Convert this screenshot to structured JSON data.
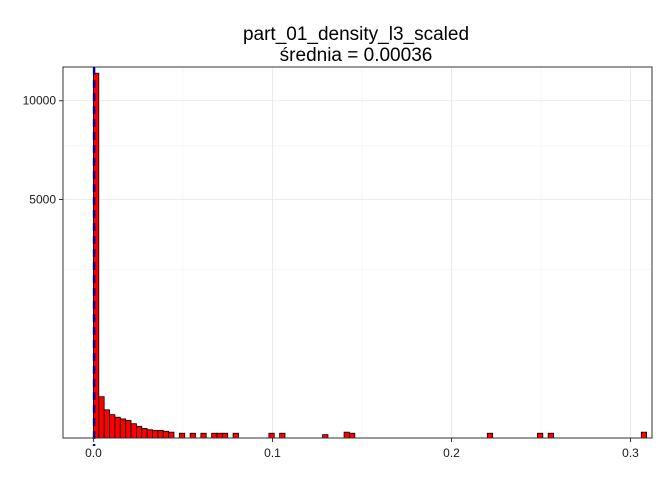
{
  "chart_data": {
    "type": "bar",
    "title": "part_01_density_l3_scaled",
    "subtitle": "średnia = 0.00036",
    "xlabel": "",
    "ylabel": "",
    "y_scale": "sqrt",
    "xlim": [
      -0.017,
      0.312
    ],
    "ylim": [
      0,
      12100
    ],
    "x_ticks": [
      0.0,
      0.1,
      0.2,
      0.3
    ],
    "x_tick_labels": [
      "0.0",
      "0.1",
      "0.2",
      "0.3"
    ],
    "y_ticks": [
      5000,
      10000
    ],
    "y_tick_labels": [
      "5000",
      "10000"
    ],
    "grid": true,
    "bin_width": 0.003,
    "bar_fill": "#ff0000",
    "bar_stroke": "#000000",
    "mean_line": {
      "value": 0.00036,
      "color": "#00008b",
      "style": "dashed"
    },
    "bins": [
      {
        "x": 0.0,
        "count": 11700
      },
      {
        "x": 0.003,
        "count": 150
      },
      {
        "x": 0.006,
        "count": 70
      },
      {
        "x": 0.009,
        "count": 48
      },
      {
        "x": 0.012,
        "count": 38
      },
      {
        "x": 0.015,
        "count": 32
      },
      {
        "x": 0.018,
        "count": 27
      },
      {
        "x": 0.021,
        "count": 18
      },
      {
        "x": 0.024,
        "count": 12
      },
      {
        "x": 0.027,
        "count": 8
      },
      {
        "x": 0.03,
        "count": 6
      },
      {
        "x": 0.033,
        "count": 5
      },
      {
        "x": 0.036,
        "count": 5
      },
      {
        "x": 0.039,
        "count": 4
      },
      {
        "x": 0.042,
        "count": 3
      },
      {
        "x": 0.048,
        "count": 2
      },
      {
        "x": 0.054,
        "count": 2
      },
      {
        "x": 0.06,
        "count": 2
      },
      {
        "x": 0.066,
        "count": 2
      },
      {
        "x": 0.069,
        "count": 2
      },
      {
        "x": 0.072,
        "count": 2
      },
      {
        "x": 0.078,
        "count": 2
      },
      {
        "x": 0.098,
        "count": 2
      },
      {
        "x": 0.104,
        "count": 2
      },
      {
        "x": 0.128,
        "count": 1
      },
      {
        "x": 0.14,
        "count": 3
      },
      {
        "x": 0.143,
        "count": 2
      },
      {
        "x": 0.22,
        "count": 2
      },
      {
        "x": 0.248,
        "count": 2
      },
      {
        "x": 0.254,
        "count": 2
      },
      {
        "x": 0.306,
        "count": 3
      }
    ]
  }
}
